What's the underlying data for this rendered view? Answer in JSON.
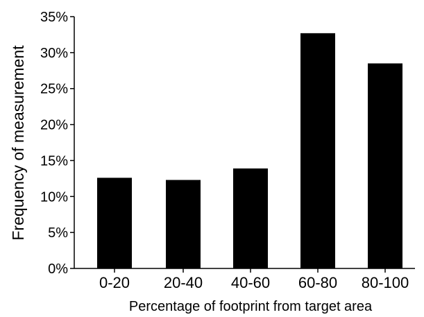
{
  "chart_data": {
    "type": "bar",
    "title": "",
    "xlabel": "Percentage of footprint from target area",
    "ylabel": "Frequency of measurement",
    "categories": [
      "0-20",
      "20-40",
      "40-60",
      "60-80",
      "80-100"
    ],
    "values": [
      12.6,
      12.3,
      13.9,
      32.7,
      28.5
    ],
    "value_unit": "%",
    "ylim": [
      0,
      35
    ],
    "yticks": [
      "0%",
      "5%",
      "10%",
      "15%",
      "20%",
      "25%",
      "30%",
      "35%"
    ],
    "grid": false,
    "legend": "none",
    "bar_color": "#000000"
  }
}
